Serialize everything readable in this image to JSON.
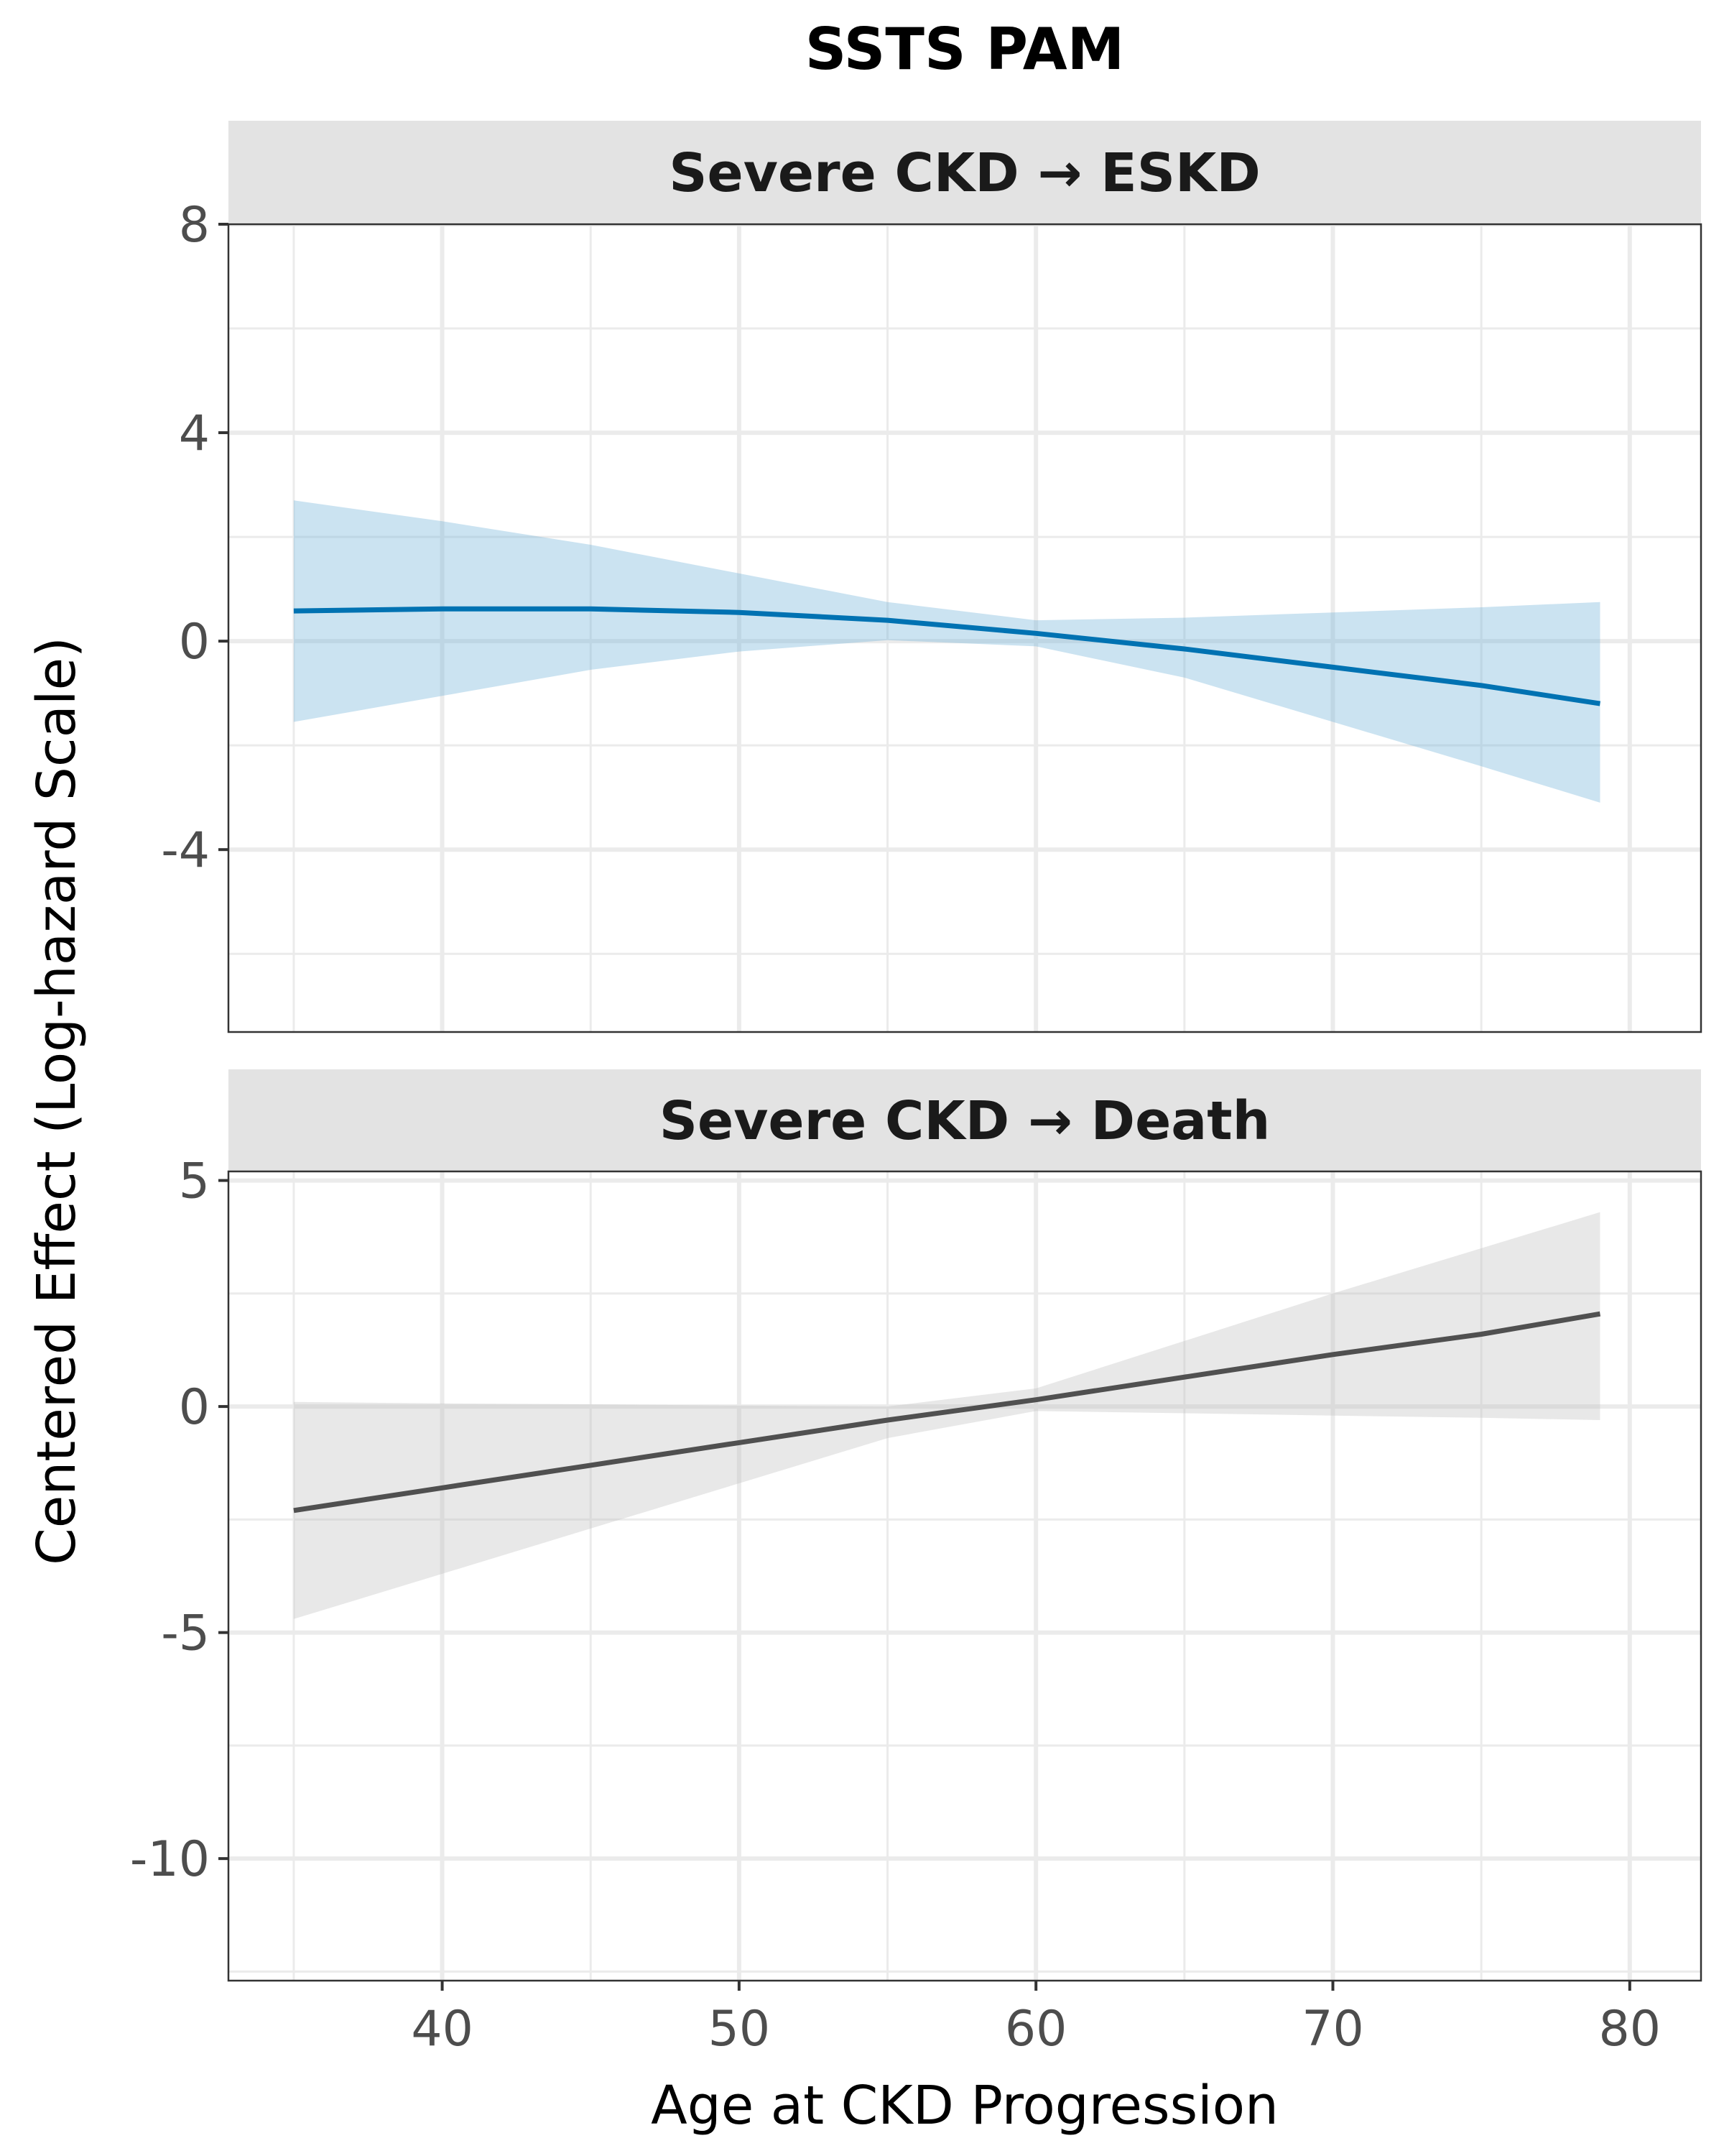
{
  "chart_data": {
    "type": "line",
    "title": "SSTS PAM",
    "xlabel": "Age at CKD Progression",
    "ylabel": "Centered Effect (Log-hazard Scale)",
    "xlim": [
      32.8,
      82.4
    ],
    "x_ticks": [
      40,
      50,
      60,
      70,
      80
    ],
    "grid": true,
    "panels": [
      {
        "strip_label": "Severe CKD → ESKD",
        "ylim": [
          -7.5,
          8.0
        ],
        "y_ticks": [
          8,
          4,
          0,
          -4
        ],
        "y_tick_labels": [
          "8",
          "4",
          "0",
          "-4"
        ],
        "line_color": "#0072b2",
        "band_color": "#6baed6",
        "series": [
          {
            "x": [
              35,
              40,
              45,
              50,
              55,
              60,
              65,
              70,
              75,
              79
            ],
            "fit": [
              0.58,
              0.62,
              0.62,
              0.55,
              0.4,
              0.15,
              -0.15,
              -0.5,
              -0.85,
              -1.2
            ],
            "lower": [
              -1.55,
              -1.05,
              -0.55,
              -0.2,
              0.02,
              -0.1,
              -0.7,
              -1.55,
              -2.4,
              -3.1
            ],
            "upper": [
              2.7,
              2.3,
              1.85,
              1.3,
              0.75,
              0.4,
              0.45,
              0.55,
              0.65,
              0.75
            ]
          }
        ]
      },
      {
        "strip_label": "Severe CKD → Death",
        "ylim": [
          -12.7,
          5.2
        ],
        "y_ticks": [
          5,
          0,
          -5,
          -10
        ],
        "y_tick_labels": [
          "5",
          "0",
          "-5",
          "-10"
        ],
        "line_color": "#505050",
        "band_color": "#bdbdbd",
        "series": [
          {
            "x": [
              35,
              40,
              45,
              50,
              55,
              60,
              65,
              70,
              75,
              79
            ],
            "fit": [
              -2.3,
              -1.8,
              -1.3,
              -0.8,
              -0.3,
              0.15,
              0.65,
              1.15,
              1.6,
              2.05
            ],
            "lower": [
              -4.7,
              -3.7,
              -2.7,
              -1.7,
              -0.7,
              -0.1,
              -0.15,
              -0.2,
              -0.25,
              -0.3
            ],
            "upper": [
              0.1,
              0.07,
              0.05,
              0.02,
              0.0,
              0.4,
              1.45,
              2.5,
              3.5,
              4.3
            ]
          }
        ]
      }
    ]
  }
}
